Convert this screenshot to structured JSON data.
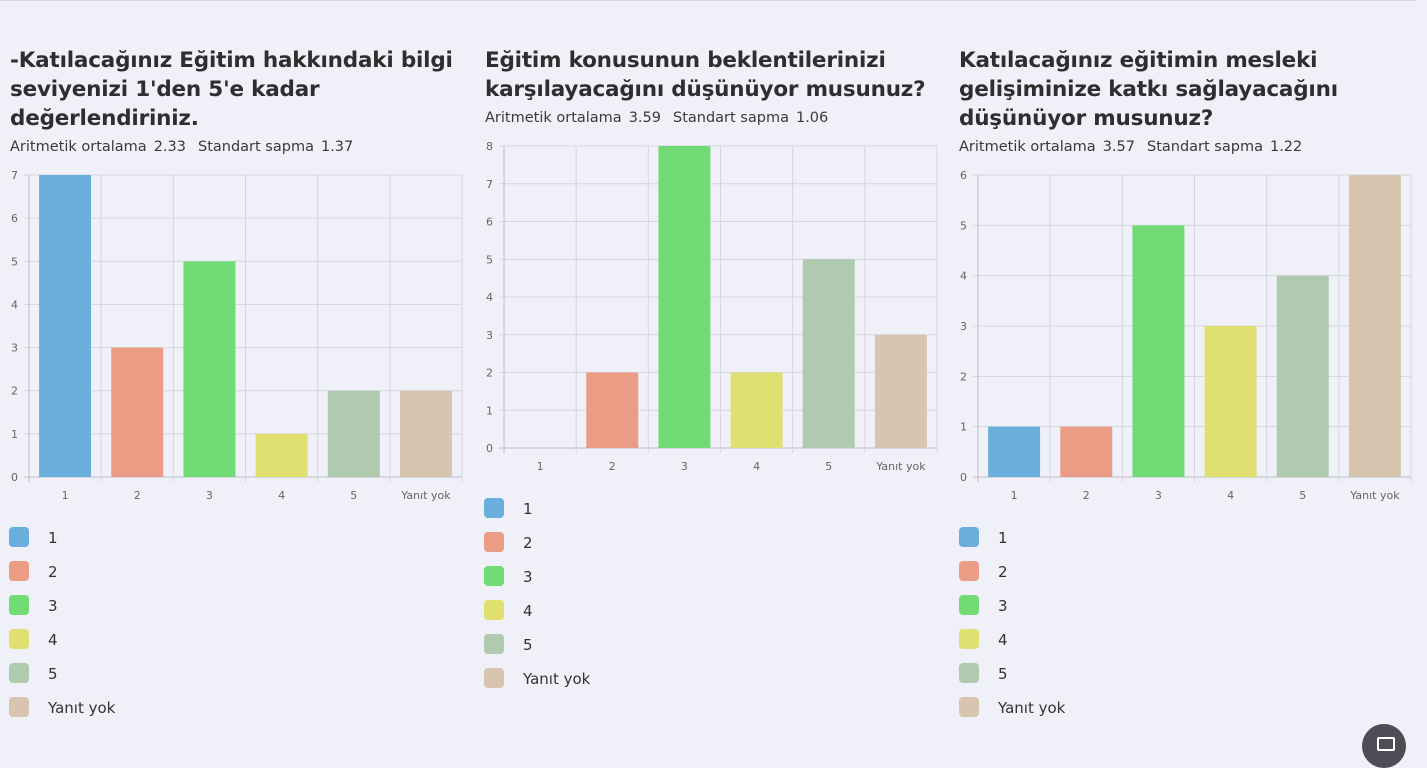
{
  "colors": {
    "1": "#6aaedc",
    "2": "#ea9d84",
    "3": "#72db76",
    "4": "#dfe070",
    "5": "#afcaaf",
    "Yanıt yok": "#d8c5b0"
  },
  "panels": [
    {
      "title_lines": [
        "-Katılacağınız Eğitim hakkındaki bilgi",
        "seviyenizi 1'den 5'e kadar",
        "değerlendiriniz."
      ],
      "mean_label": "Aritmetik ortalama",
      "mean": "2.33",
      "sd_label": "Standart sapma",
      "sd": "1.37",
      "legend": [
        "1",
        "2",
        "3",
        "4",
        "5",
        "Yanıt yok"
      ]
    },
    {
      "title_lines": [
        "Eğitim konusunun beklentilerinizi",
        "karşılayacağını düşünüyor musunuz?"
      ],
      "mean_label": "Aritmetik ortalama",
      "mean": "3.59",
      "sd_label": "Standart sapma",
      "sd": "1.06",
      "legend": [
        "1",
        "2",
        "3",
        "4",
        "5",
        "Yanıt yok"
      ]
    },
    {
      "title_lines": [
        "Katılacağınız eğitimin mesleki",
        "gelişiminize katkı sağlayacağını",
        "düşünüyor musunuz?"
      ],
      "mean_label": "Aritmetik ortalama",
      "mean": "3.57",
      "sd_label": "Standart sapma",
      "sd": "1.22",
      "legend": [
        "1",
        "2",
        "3",
        "4",
        "5",
        "Yanıt yok"
      ]
    }
  ],
  "chart_data": [
    {
      "type": "bar",
      "categories": [
        "1",
        "2",
        "3",
        "4",
        "5",
        "Yanıt yok"
      ],
      "values": [
        7,
        3,
        5,
        1,
        2,
        2
      ],
      "ylim": [
        0,
        7
      ],
      "yticks": [
        "0",
        "1",
        "2",
        "3",
        "4",
        "5",
        "6",
        "7"
      ],
      "grid": true
    },
    {
      "type": "bar",
      "categories": [
        "1",
        "2",
        "3",
        "4",
        "5",
        "Yanıt yok"
      ],
      "values": [
        0,
        2,
        8,
        2,
        5,
        3
      ],
      "ylim": [
        0,
        8
      ],
      "yticks": [
        "0",
        "1",
        "2",
        "3",
        "4",
        "5",
        "6",
        "7",
        "8"
      ],
      "grid": true
    },
    {
      "type": "bar",
      "categories": [
        "1",
        "2",
        "3",
        "4",
        "5",
        "Yanıt yok"
      ],
      "values": [
        1,
        1,
        5,
        3,
        4,
        6
      ],
      "ylim": [
        0,
        6
      ],
      "yticks": [
        "0",
        "1",
        "2",
        "3",
        "4",
        "5",
        "6"
      ],
      "grid": true
    }
  ]
}
